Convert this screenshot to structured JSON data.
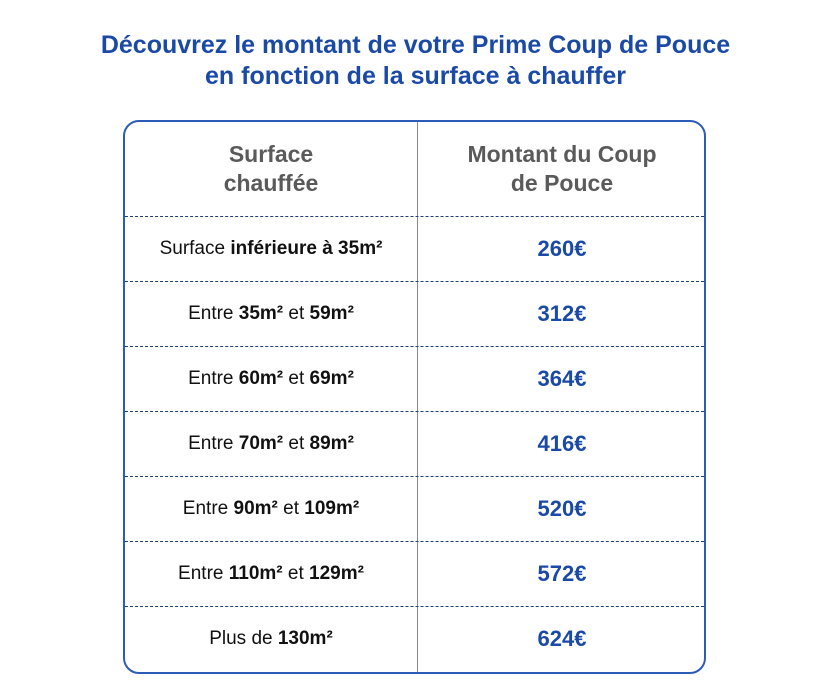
{
  "title": {
    "line1": "Découvrez le montant de votre Prime Coup de Pouce",
    "line2": "en fonction de la surface à chauffer"
  },
  "table": {
    "headers": {
      "surface_line1": "Surface",
      "surface_line2": "chauffée",
      "amount_line1": "Montant du Coup",
      "amount_line2": "de Pouce"
    },
    "rows": [
      {
        "prefix": "Surface ",
        "bold1": "inférieure à 35m²",
        "middle": "",
        "bold2": "",
        "amount": "260€"
      },
      {
        "prefix": "Entre ",
        "bold1": "35m²",
        "middle": " et ",
        "bold2": "59m²",
        "amount": "312€"
      },
      {
        "prefix": "Entre ",
        "bold1": "60m²",
        "middle": " et ",
        "bold2": "69m²",
        "amount": "364€"
      },
      {
        "prefix": "Entre ",
        "bold1": "70m²",
        "middle": " et ",
        "bold2": "89m²",
        "amount": "416€"
      },
      {
        "prefix": "Entre ",
        "bold1": "90m²",
        "middle": " et ",
        "bold2": "109m²",
        "amount": "520€"
      },
      {
        "prefix": "Entre ",
        "bold1": "110m²",
        "middle": " et ",
        "bold2": "129m²",
        "amount": "572€"
      },
      {
        "prefix": "Plus de ",
        "bold1": "130m²",
        "middle": "",
        "bold2": "",
        "amount": "624€"
      }
    ]
  },
  "colors": {
    "accent_blue": "#1a4aa6",
    "border_blue": "#2c5bb8",
    "header_gray": "#5a5a5a",
    "body_text": "#111111"
  }
}
